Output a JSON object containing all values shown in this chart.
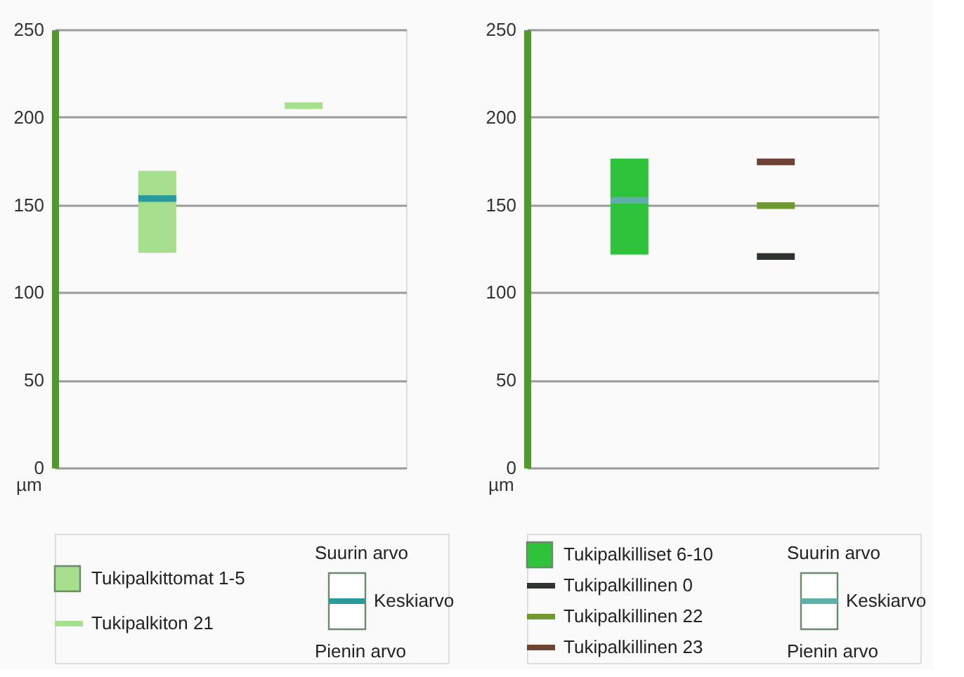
{
  "chart_data": [
    {
      "type": "bar",
      "ylabel": "µm",
      "categories": [
        null,
        null
      ],
      "ylim": [
        0,
        250
      ],
      "yticks": [
        0,
        50,
        100,
        150,
        200,
        250
      ],
      "grid": "y",
      "tick_labels": "y",
      "legend": "bottom",
      "annotations": [
        "Suurin arvo",
        "Pienin arvo"
      ],
      "series": [
        {
          "name": "Tukipalkittomat 1-5",
          "color": "#a6e08c",
          "values": [
            46,
            null
          ],
          "base": [
            123,
            null
          ]
        },
        {
          "name": "Tukipalkiton 21",
          "color": "#a6e08c",
          "values": [
            null,
            3
          ],
          "base": [
            null,
            205
          ]
        },
        {
          "name": "Keskiarvo",
          "color": "#2a9a9a",
          "values": [
            3,
            null
          ],
          "base": [
            152,
            null
          ]
        }
      ]
    },
    {
      "type": "bar",
      "ylabel": "µm",
      "categories": [
        null,
        null
      ],
      "ylim": [
        0,
        250
      ],
      "yticks": [
        0,
        50,
        100,
        150,
        200,
        250
      ],
      "grid": "y",
      "tick_labels": "y",
      "legend": "bottom",
      "annotations": [
        "Suurin arvo",
        "Pienin arvo"
      ],
      "series": [
        {
          "name": "Tukipalkilliset 6-10",
          "color": "#2fc33b",
          "values": [
            54,
            null
          ],
          "base": [
            122,
            null
          ]
        },
        {
          "name": "Keskiarvo",
          "color": "#5fb0a8",
          "values": [
            3,
            null
          ],
          "base": [
            151,
            null
          ]
        },
        {
          "name": "Tukipalkillinen 0",
          "color": "#2e352e",
          "values": [
            null,
            3
          ],
          "base": [
            null,
            119
          ]
        },
        {
          "name": "Tukipalkillinen 22",
          "color": "#6f9a33",
          "values": [
            null,
            3
          ],
          "base": [
            null,
            148
          ]
        },
        {
          "name": "Tukipalkillinen 23",
          "color": "#6e4533",
          "values": [
            null,
            3
          ],
          "base": [
            null,
            173
          ]
        }
      ]
    }
  ]
}
